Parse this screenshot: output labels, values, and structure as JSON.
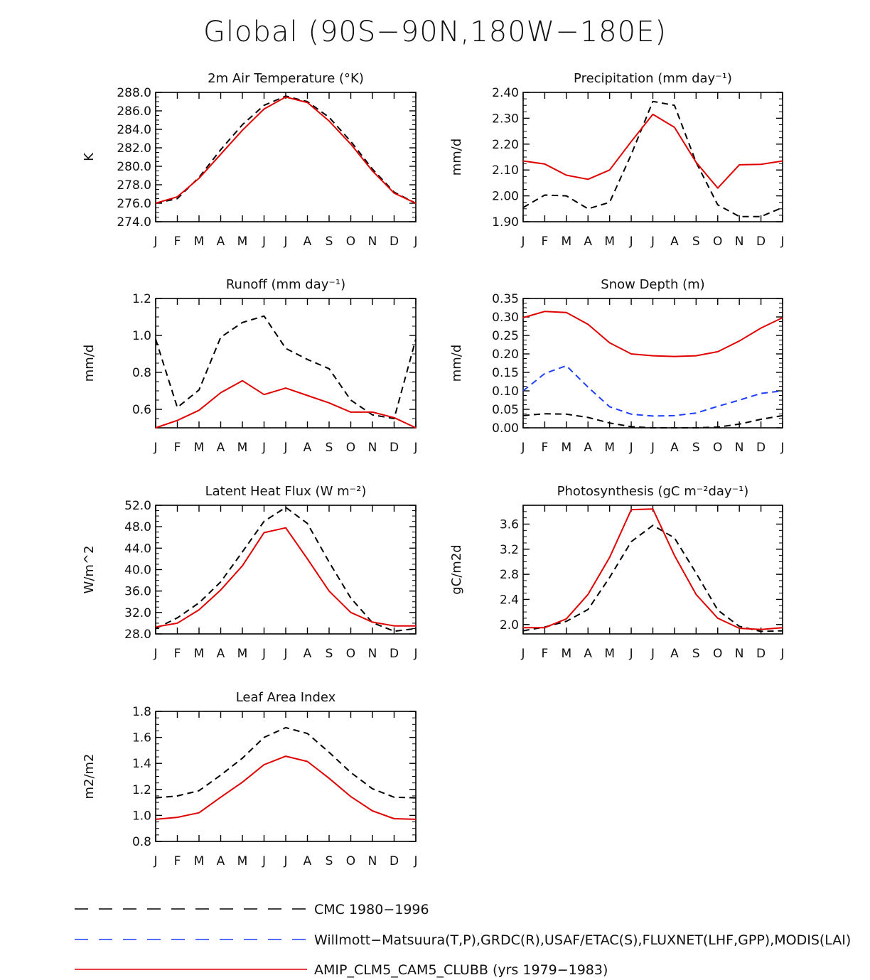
{
  "title": "Global (90S−90N,180W−180E)",
  "months": [
    "J",
    "F",
    "M",
    "A",
    "M",
    "J",
    "J",
    "A",
    "S",
    "O",
    "N",
    "D",
    "J"
  ],
  "legend": [
    {
      "key": "cmc",
      "label": "CMC 1980−1996",
      "color": "#000000",
      "dash": true
    },
    {
      "key": "obs",
      "label": "Willmott−Matsuura(T,P),GRDC(R),USAF/ETAC(S),FLUXNET(LHF,GPP),MODIS(LAI)",
      "color": "#1f3fff",
      "dash": true
    },
    {
      "key": "model",
      "label": "AMIP_CLM5_CAM5_CLUBB (yrs 1979−1983)",
      "color": "#e00000",
      "dash": false
    }
  ],
  "chart_data": [
    {
      "type": "line",
      "id": "tsa",
      "title": "2m Air Temperature (°K)",
      "ylabel": "K",
      "ylim": [
        274,
        288
      ],
      "yticks": [
        274,
        276,
        278,
        280,
        282,
        284,
        286,
        288
      ],
      "tick_decimals": 1,
      "series": [
        {
          "name": "CMC 1980−1996",
          "color": "#000000",
          "dash": true,
          "values": [
            276.0,
            276.5,
            278.8,
            281.8,
            284.5,
            286.6,
            287.6,
            287.0,
            285.3,
            282.7,
            279.7,
            277.2,
            276.0
          ]
        },
        {
          "name": "AMIP_CLM5_CAM5_CLUBB (yrs 1979−1983)",
          "color": "#e00000",
          "dash": false,
          "values": [
            276.0,
            276.7,
            278.7,
            281.3,
            283.9,
            286.2,
            287.5,
            286.9,
            284.9,
            282.4,
            279.5,
            277.1,
            276.0
          ]
        }
      ]
    },
    {
      "type": "line",
      "id": "prec",
      "title": "Precipitation (mm day⁻¹)",
      "ylabel": "mm/d",
      "ylim": [
        1.9,
        2.4
      ],
      "yticks": [
        1.9,
        2.0,
        2.1,
        2.2,
        2.3,
        2.4
      ],
      "tick_decimals": 2,
      "series": [
        {
          "name": "CMC 1980−1996",
          "color": "#000000",
          "dash": true,
          "values": [
            1.955,
            2.003,
            2.0,
            1.95,
            1.975,
            2.16,
            2.365,
            2.35,
            2.13,
            1.965,
            1.92,
            1.92,
            1.955
          ]
        },
        {
          "name": "AMIP_CLM5_CAM5_CLUBB (yrs 1979−1983)",
          "color": "#e00000",
          "dash": false,
          "values": [
            2.135,
            2.123,
            2.08,
            2.064,
            2.1,
            2.21,
            2.315,
            2.265,
            2.13,
            2.03,
            2.12,
            2.122,
            2.135
          ]
        }
      ]
    },
    {
      "type": "line",
      "id": "runoff",
      "title": "Runoff (mm day⁻¹)",
      "ylabel": "mm/d",
      "ylim": [
        0.5,
        1.2
      ],
      "yticks": [
        0.6,
        0.8,
        1.0,
        1.2
      ],
      "tick_decimals": 1,
      "series": [
        {
          "name": "CMC 1980−1996",
          "color": "#000000",
          "dash": true,
          "values": [
            0.98,
            0.61,
            0.705,
            0.99,
            1.07,
            1.105,
            0.93,
            0.87,
            0.82,
            0.65,
            0.57,
            0.55,
            0.98
          ]
        },
        {
          "name": "AMIP_CLM5_CAM5_CLUBB (yrs 1979−1983)",
          "color": "#e00000",
          "dash": false,
          "values": [
            0.5,
            0.54,
            0.595,
            0.69,
            0.755,
            0.68,
            0.715,
            0.675,
            0.635,
            0.585,
            0.585,
            0.555,
            0.5
          ]
        }
      ]
    },
    {
      "type": "line",
      "id": "snow",
      "title": "Snow Depth (m)",
      "ylabel": "mm/d",
      "ylim": [
        0.0,
        0.35
      ],
      "yticks": [
        0.0,
        0.05,
        0.1,
        0.15,
        0.2,
        0.25,
        0.3,
        0.35
      ],
      "tick_decimals": 2,
      "series": [
        {
          "name": "CMC 1980−1996",
          "color": "#000000",
          "dash": true,
          "values": [
            0.033,
            0.038,
            0.037,
            0.028,
            0.013,
            0.003,
            0.0,
            0.0,
            0.0,
            0.002,
            0.01,
            0.023,
            0.033
          ]
        },
        {
          "name": "Willmott−Matsuura(T,P),GRDC(R),USAF/ETAC(S),FLUXNET(LHF,GPP),MODIS(LAI)",
          "color": "#1f3fff",
          "dash": true,
          "values": [
            0.1,
            0.147,
            0.168,
            0.11,
            0.057,
            0.037,
            0.032,
            0.033,
            0.04,
            0.058,
            0.075,
            0.093,
            0.1
          ]
        },
        {
          "name": "AMIP_CLM5_CAM5_CLUBB (yrs 1979−1983)",
          "color": "#e00000",
          "dash": false,
          "values": [
            0.298,
            0.315,
            0.312,
            0.28,
            0.23,
            0.2,
            0.195,
            0.193,
            0.195,
            0.206,
            0.235,
            0.27,
            0.298
          ]
        }
      ]
    },
    {
      "type": "line",
      "id": "lhf",
      "title": "Latent Heat Flux (W m⁻²)",
      "ylabel": "W/m^2",
      "ylim": [
        28,
        52
      ],
      "yticks": [
        28,
        32,
        36,
        40,
        44,
        48,
        52
      ],
      "tick_decimals": 1,
      "series": [
        {
          "name": "CMC 1980−1996",
          "color": "#000000",
          "dash": true,
          "values": [
            29.0,
            31.0,
            33.8,
            37.7,
            43.3,
            49.0,
            51.6,
            48.6,
            41.4,
            34.7,
            30.1,
            28.5,
            29.0
          ]
        },
        {
          "name": "AMIP_CLM5_CAM5_CLUBB (yrs 1979−1983)",
          "color": "#e00000",
          "dash": false,
          "values": [
            29.3,
            30.0,
            32.5,
            36.2,
            40.7,
            46.9,
            47.8,
            42.0,
            36.0,
            32.0,
            30.2,
            29.5,
            29.5
          ]
        }
      ]
    },
    {
      "type": "line",
      "id": "gpp",
      "title": "Photosynthesis (gC m⁻²day⁻¹)",
      "ylabel": "gC/m2d",
      "ylim": [
        1.85,
        3.9
      ],
      "yticks": [
        2.0,
        2.4,
        2.8,
        3.2,
        3.6
      ],
      "tick_decimals": 1,
      "series": [
        {
          "name": "CMC 1980−1996",
          "color": "#000000",
          "dash": true,
          "values": [
            1.9,
            1.96,
            2.05,
            2.24,
            2.75,
            3.32,
            3.58,
            3.38,
            2.82,
            2.23,
            1.97,
            1.89,
            1.9
          ]
        },
        {
          "name": "AMIP_CLM5_CAM5_CLUBB (yrs 1979−1983)",
          "color": "#e00000",
          "dash": false,
          "values": [
            1.95,
            1.95,
            2.09,
            2.48,
            3.07,
            3.83,
            3.84,
            3.1,
            2.48,
            2.1,
            1.94,
            1.92,
            1.95
          ]
        }
      ]
    },
    {
      "type": "line",
      "id": "lai",
      "title": "Leaf Area Index",
      "ylabel": "m2/m2",
      "ylim": [
        0.8,
        1.8
      ],
      "yticks": [
        0.8,
        1.0,
        1.2,
        1.4,
        1.6,
        1.8
      ],
      "tick_decimals": 1,
      "series": [
        {
          "name": "CMC 1980−1996",
          "color": "#000000",
          "dash": true,
          "values": [
            1.135,
            1.15,
            1.19,
            1.31,
            1.44,
            1.6,
            1.675,
            1.63,
            1.485,
            1.33,
            1.205,
            1.14,
            1.135
          ]
        },
        {
          "name": "AMIP_CLM5_CAM5_CLUBB (yrs 1979−1983)",
          "color": "#e00000",
          "dash": false,
          "values": [
            0.97,
            0.985,
            1.02,
            1.14,
            1.255,
            1.39,
            1.455,
            1.415,
            1.285,
            1.145,
            1.035,
            0.975,
            0.97
          ]
        }
      ]
    }
  ]
}
